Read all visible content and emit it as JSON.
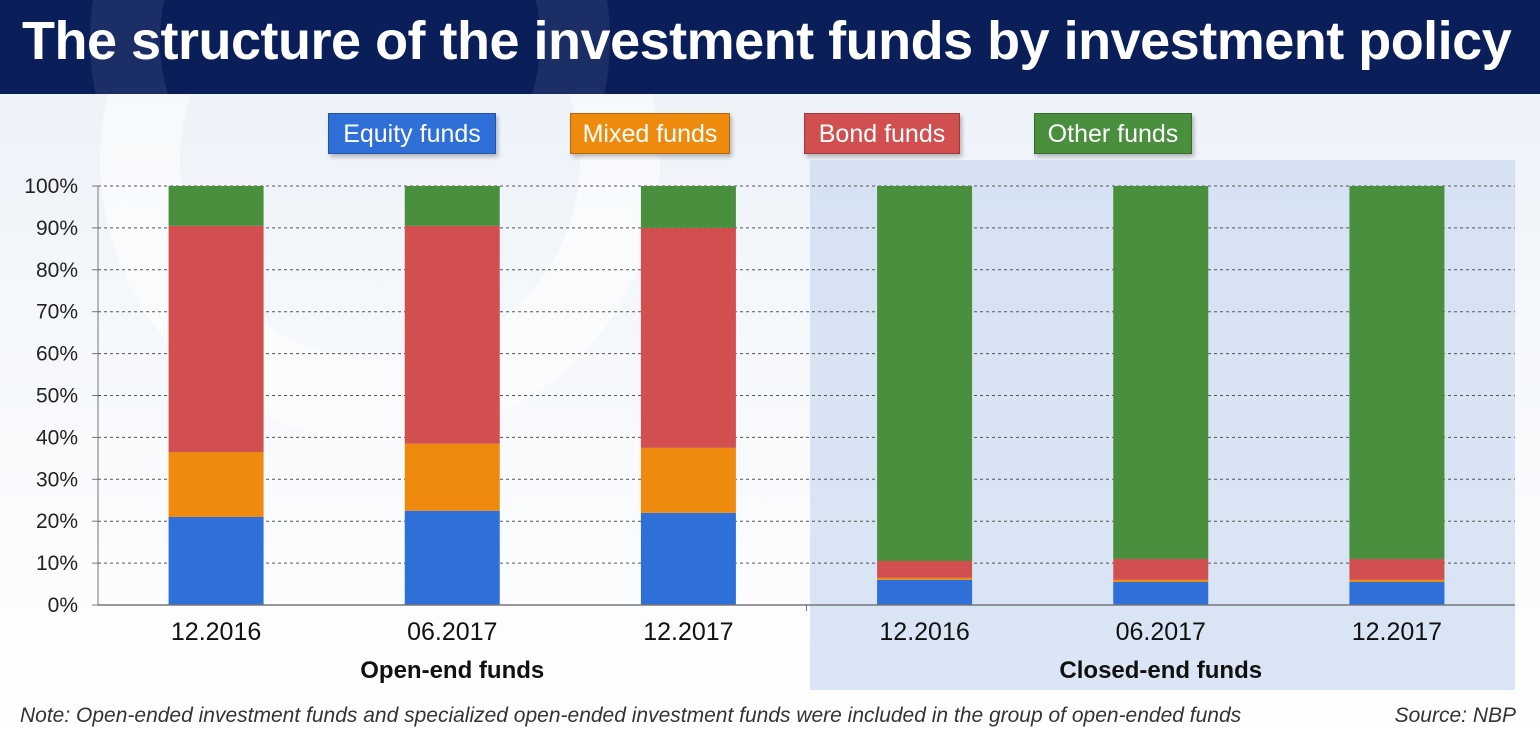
{
  "title": "The structure of the investment funds by investment policy",
  "colors": {
    "equity": "#2f6fd8",
    "mixed": "#ee8b0e",
    "bond": "#d24f4f",
    "other": "#4a8f3e",
    "header_bg": "#0a1f5a"
  },
  "chart_data": {
    "type": "bar",
    "stacked": true,
    "title": "The structure of the investment funds by investment policy",
    "categories": [
      "12.2016",
      "06.2017",
      "12.2017",
      "12.2016",
      "06.2017",
      "12.2017"
    ],
    "groups": [
      {
        "label": "Open-end funds",
        "category_indices": [
          0,
          1,
          2
        ]
      },
      {
        "label": "Closed-end funds",
        "category_indices": [
          3,
          4,
          5
        ]
      }
    ],
    "series": [
      {
        "name": "Equity funds",
        "values": [
          21,
          22.5,
          22,
          6,
          5.5,
          5.5
        ]
      },
      {
        "name": "Mixed funds",
        "values": [
          15.5,
          16,
          15.5,
          0.5,
          0.5,
          0.5
        ]
      },
      {
        "name": "Bond funds",
        "values": [
          54,
          52,
          52.5,
          4,
          5,
          5
        ]
      },
      {
        "name": "Other funds",
        "values": [
          9.5,
          9.5,
          10,
          89.5,
          89,
          89
        ]
      }
    ],
    "ylim": [
      0,
      100
    ],
    "yticks": [
      "0%",
      "10%",
      "20%",
      "30%",
      "40%",
      "50%",
      "60%",
      "70%",
      "80%",
      "90%",
      "100%"
    ],
    "grid": true,
    "legend_position": "top",
    "legend_order": [
      "Equity funds",
      "Mixed funds",
      "Bond funds",
      "Other funds"
    ]
  },
  "footer": {
    "note": "Note: Open-ended investment funds and specialized open-ended investment funds were included in the group of open-ended funds",
    "source": "Source: NBP"
  }
}
